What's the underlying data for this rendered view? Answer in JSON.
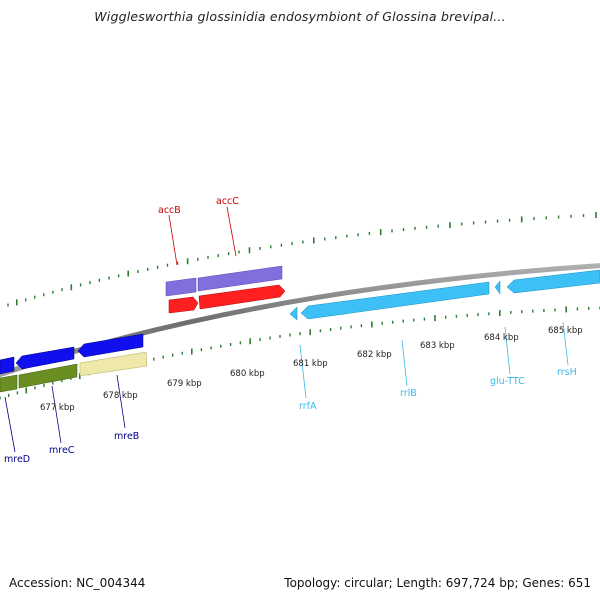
{
  "title": "Wigglesworthia glossinidia endosymbiont of Glossina brevipal...",
  "footer": {
    "accession": "Accession: NC_004344",
    "summary": "Topology: circular; Length: 697,724 bp; Genes: 651"
  },
  "ticks": [
    {
      "label": "677 kbp"
    },
    {
      "label": "678 kbp"
    },
    {
      "label": "679 kbp"
    },
    {
      "label": "680 kbp"
    },
    {
      "label": "681 kbp"
    },
    {
      "label": "682 kbp"
    },
    {
      "label": "683 kbp"
    },
    {
      "label": "684 kbp"
    },
    {
      "label": "685 kbp"
    }
  ],
  "genes": [
    {
      "label": "accB",
      "color": "#cc0000"
    },
    {
      "label": "accC",
      "color": "#cc0000"
    },
    {
      "label": "mreD",
      "color": "#00008b"
    },
    {
      "label": "mreC",
      "color": "#00008b"
    },
    {
      "label": "mreB",
      "color": "#00008b"
    },
    {
      "label": "rrfA",
      "color": "#3cb8e8"
    },
    {
      "label": "rrlB",
      "color": "#3cb8e8"
    },
    {
      "label": "glu-TTC",
      "color": "#3cb8e8"
    },
    {
      "label": "rrsH",
      "color": "#3cb8e8"
    }
  ],
  "colors": {
    "backbone": "#888888",
    "tick": "#2e7d32",
    "blue_gene": "#1515e0",
    "olive_gene": "#6b8e23",
    "khaki_gene": "#eee8aa",
    "purple_gene": "#6a5acd",
    "red_gene": "#ee1111",
    "cyan_gene": "#33bbf0"
  }
}
